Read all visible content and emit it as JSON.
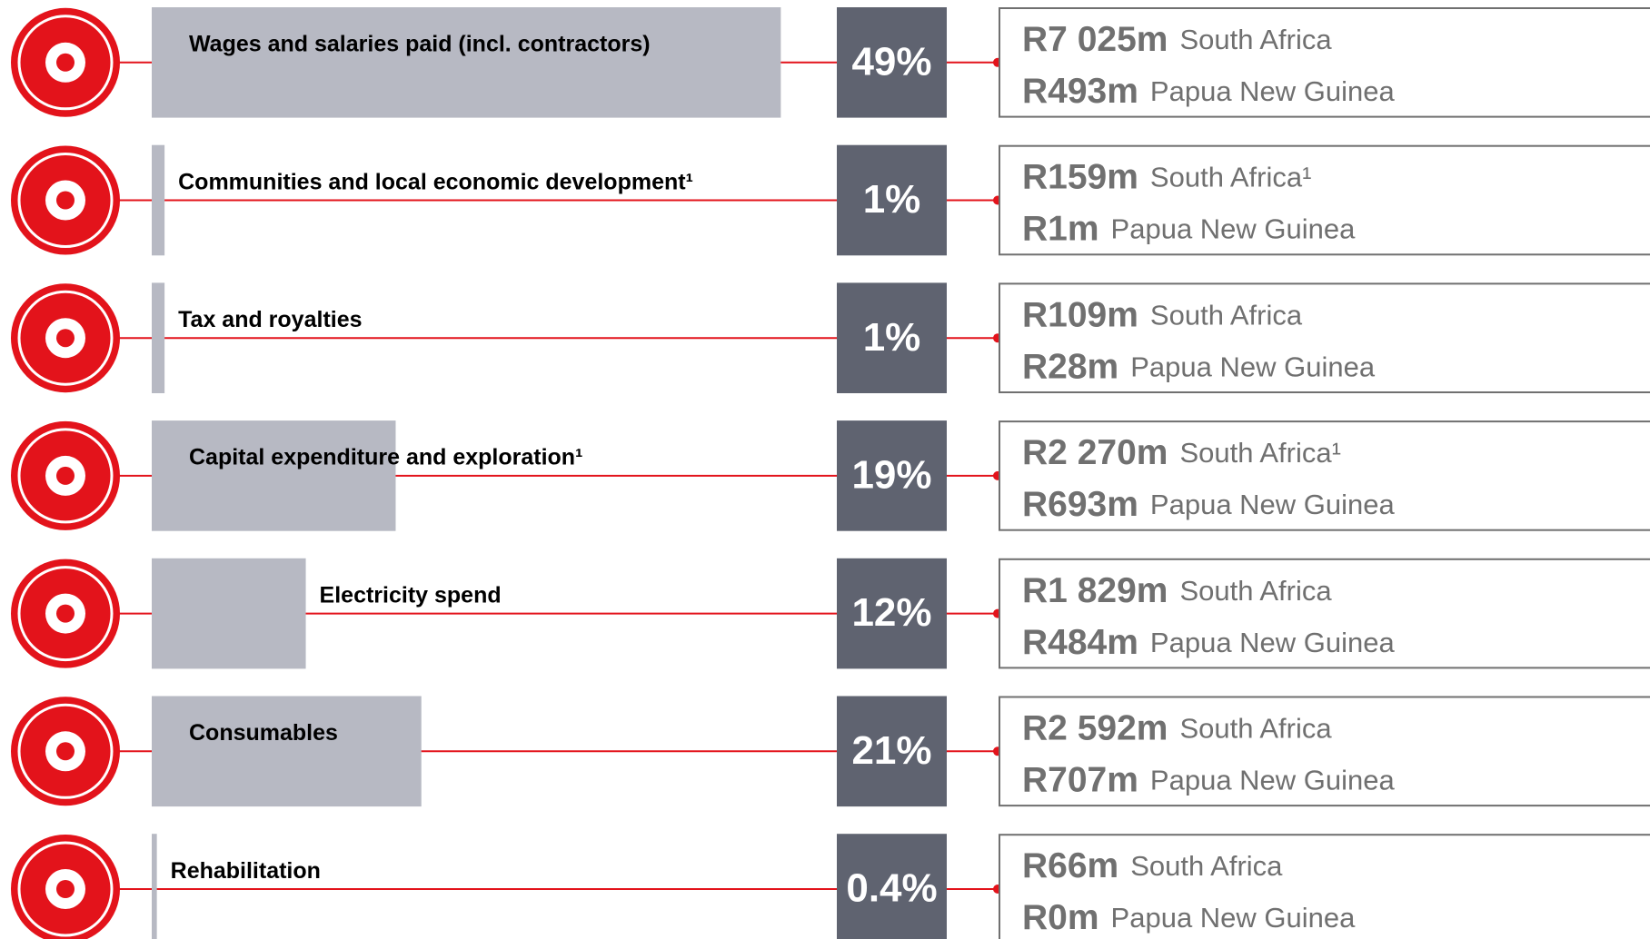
{
  "chart_data": {
    "type": "bar",
    "categories": [
      "Wages and salaries paid (incl. contractors)",
      "Communities and local economic development¹",
      "Tax and royalties",
      "Capital expenditure and exploration¹",
      "Electricity spend",
      "Consumables",
      "Rehabilitation"
    ],
    "values": [
      49,
      1,
      1,
      19,
      12,
      21,
      0.4
    ],
    "value_labels": [
      "49%",
      "1%",
      "1%",
      "19%",
      "12%",
      "21%",
      "0.4%"
    ],
    "color": "#b7b9c3",
    "breakdown": [
      [
        {
          "amount": {
            "value": 7025,
            "label": "R7 025m"
          },
          "region": "South Africa"
        },
        {
          "amount": {
            "value": 493,
            "label": "R493m"
          },
          "region": "Papua New Guinea"
        }
      ],
      [
        {
          "amount": {
            "value": 159,
            "label": "R159m"
          },
          "region": "South Africa¹"
        },
        {
          "amount": {
            "value": 1,
            "label": "R1m"
          },
          "region": "Papua New Guinea"
        }
      ],
      [
        {
          "amount": {
            "value": 109,
            "label": "R109m"
          },
          "region": "South Africa"
        },
        {
          "amount": {
            "value": 28,
            "label": "R28m"
          },
          "region": "Papua New Guinea"
        }
      ],
      [
        {
          "amount": {
            "value": 2270,
            "label": "R2 270m"
          },
          "region": "South Africa¹"
        },
        {
          "amount": {
            "value": 693,
            "label": "R693m"
          },
          "region": "Papua New Guinea"
        }
      ],
      [
        {
          "amount": {
            "value": 1829,
            "label": "R1 829m"
          },
          "region": "South Africa"
        },
        {
          "amount": {
            "value": 484,
            "label": "R484m"
          },
          "region": "Papua New Guinea"
        }
      ],
      [
        {
          "amount": {
            "value": 2592,
            "label": "R2 592m"
          },
          "region": "South Africa"
        },
        {
          "amount": {
            "value": 707,
            "label": "R707m"
          },
          "region": "Papua New Guinea"
        }
      ],
      [
        {
          "amount": {
            "value": 66,
            "label": "R66m"
          },
          "region": "South Africa"
        },
        {
          "amount": {
            "value": 0,
            "label": "R0m"
          },
          "region": "Papua New Guinea"
        }
      ]
    ]
  }
}
